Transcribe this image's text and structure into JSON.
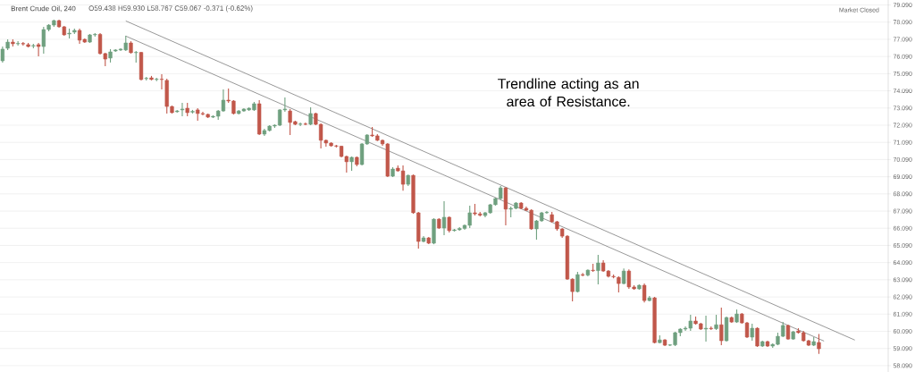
{
  "chart_data": {
    "type": "candlestick",
    "title": "Brent Crude Oil, 240",
    "annotations": [
      "O59.438  H59.930  L58.767  C59.067  -0.371 (-0.62%)",
      "Market Closed",
      "Trendline acting as an area of Resistance."
    ],
    "categories": [
      null,
      null,
      null,
      null,
      null,
      null,
      null,
      null,
      null,
      null,
      null,
      null,
      null,
      null,
      null,
      null,
      null,
      null,
      null,
      null,
      null,
      null,
      null,
      null,
      null,
      null,
      null,
      null,
      null,
      null,
      null,
      null,
      null,
      null,
      null,
      null,
      null,
      null,
      null,
      null,
      null,
      null,
      null,
      null,
      null,
      null,
      null,
      null,
      null,
      null,
      null,
      null,
      null,
      null,
      null,
      null,
      null,
      null,
      null,
      null,
      null,
      null,
      null,
      null,
      null,
      null,
      null,
      null,
      null,
      null,
      null,
      null,
      null,
      null,
      null,
      null,
      null,
      null,
      null,
      null,
      null,
      null,
      null,
      null,
      null,
      null,
      null,
      null,
      null,
      null,
      null,
      null,
      null,
      null,
      null,
      null,
      null,
      null,
      null,
      null,
      null,
      null,
      null,
      null,
      null,
      null,
      null,
      null,
      null,
      null,
      null,
      null,
      null,
      null,
      null,
      null,
      null,
      null,
      null,
      null,
      null,
      null,
      null,
      null,
      null,
      null,
      null,
      null,
      null,
      null,
      null,
      null,
      null,
      null,
      null,
      null,
      null,
      null,
      null,
      null,
      null,
      null,
      null,
      null,
      null,
      null,
      null,
      null,
      null,
      null,
      null,
      null,
      null,
      null,
      null,
      null,
      null,
      null,
      null,
      null,
      null,
      null,
      null,
      null,
      null,
      null,
      null,
      null,
      null,
      null,
      null,
      null,
      null
    ],
    "ohlc": [
      [
        75.84,
        76.67,
        75.74,
        76.52
      ],
      [
        76.57,
        77.09,
        76.47,
        76.93
      ],
      [
        76.93,
        77.09,
        76.67,
        76.83
      ],
      [
        76.83,
        76.98,
        76.73,
        76.85
      ],
      [
        76.85,
        76.93,
        76.73,
        76.82
      ],
      [
        76.78,
        76.88,
        76.62,
        76.67
      ],
      [
        76.7,
        76.83,
        76.57,
        76.73
      ],
      [
        76.78,
        76.88,
        76.1,
        76.67
      ],
      [
        76.67,
        77.82,
        76.26,
        77.66
      ],
      [
        77.66,
        77.97,
        77.56,
        77.92
      ],
      [
        77.92,
        78.23,
        77.82,
        78.18
      ],
      [
        78.18,
        78.23,
        77.77,
        77.82
      ],
      [
        77.82,
        77.87,
        77.3,
        77.35
      ],
      [
        77.4,
        77.71,
        77.14,
        77.45
      ],
      [
        77.51,
        77.71,
        77.4,
        77.61
      ],
      [
        77.61,
        77.71,
        76.83,
        77.04
      ],
      [
        77.09,
        77.14,
        76.88,
        76.93
      ],
      [
        76.93,
        77.4,
        76.88,
        77.35
      ],
      [
        77.35,
        77.45,
        77.25,
        77.38
      ],
      [
        77.38,
        77.45,
        76.2,
        76.26
      ],
      [
        76.26,
        76.31,
        75.53,
        75.94
      ],
      [
        76.0,
        76.52,
        75.74,
        76.36
      ],
      [
        76.41,
        76.52,
        76.36,
        76.47
      ],
      [
        76.47,
        76.57,
        76.41,
        76.52
      ],
      [
        76.47,
        77.3,
        76.41,
        76.88
      ],
      [
        76.88,
        76.98,
        76.26,
        76.31
      ],
      [
        76.31,
        76.41,
        75.74,
        76.33
      ],
      [
        76.33,
        76.36,
        74.7,
        74.75
      ],
      [
        74.8,
        74.9,
        74.7,
        74.82
      ],
      [
        74.85,
        74.96,
        74.7,
        74.75
      ],
      [
        74.75,
        74.85,
        74.65,
        74.77
      ],
      [
        74.77,
        75.06,
        74.17,
        74.75
      ],
      [
        74.7,
        74.8,
        72.77,
        73.18
      ],
      [
        73.18,
        73.23,
        72.77,
        72.82
      ],
      [
        72.87,
        72.98,
        72.82,
        72.92
      ],
      [
        72.98,
        73.39,
        72.61,
        73.03
      ],
      [
        73.08,
        73.39,
        72.61,
        72.82
      ],
      [
        72.85,
        72.98,
        72.77,
        72.9
      ],
      [
        72.98,
        73.08,
        72.35,
        72.77
      ],
      [
        72.77,
        72.87,
        72.66,
        72.74
      ],
      [
        72.72,
        72.77,
        72.51,
        72.56
      ],
      [
        72.56,
        72.66,
        72.51,
        72.61
      ],
      [
        72.61,
        72.98,
        72.4,
        72.92
      ],
      [
        72.92,
        74.17,
        72.87,
        73.55
      ],
      [
        73.55,
        74.23,
        73.39,
        73.5
      ],
      [
        73.5,
        73.55,
        72.72,
        72.77
      ],
      [
        72.77,
        72.98,
        72.72,
        72.92
      ],
      [
        72.92,
        73.08,
        72.87,
        73.03
      ],
      [
        72.98,
        73.13,
        72.92,
        73.08
      ],
      [
        72.98,
        73.45,
        72.92,
        73.34
      ],
      [
        73.34,
        73.55,
        71.52,
        71.57
      ],
      [
        71.57,
        71.88,
        71.47,
        71.78
      ],
      [
        71.78,
        72.09,
        71.73,
        72.04
      ],
      [
        72.04,
        72.14,
        71.93,
        72.09
      ],
      [
        72.09,
        73.03,
        72.04,
        72.98
      ],
      [
        72.98,
        73.71,
        72.87,
        73.03
      ],
      [
        72.92,
        73.03,
        71.52,
        72.25
      ],
      [
        72.3,
        72.35,
        72.09,
        72.14
      ],
      [
        72.14,
        72.25,
        72.04,
        72.16
      ],
      [
        72.16,
        72.25,
        72.09,
        72.14
      ],
      [
        72.14,
        73.13,
        72.09,
        72.77
      ],
      [
        72.77,
        72.82,
        72.09,
        72.14
      ],
      [
        72.14,
        72.19,
        70.74,
        71.21
      ],
      [
        71.21,
        71.26,
        70.84,
        71.05
      ],
      [
        71.05,
        71.1,
        70.84,
        70.89
      ],
      [
        70.89,
        70.95,
        70.79,
        70.87
      ],
      [
        70.87,
        70.89,
        70.22,
        70.27
      ],
      [
        70.27,
        70.32,
        69.33,
        69.96
      ],
      [
        69.96,
        70.27,
        69.43,
        70.22
      ],
      [
        70.22,
        70.27,
        69.7,
        69.8
      ],
      [
        69.8,
        71.05,
        69.75,
        71.0
      ],
      [
        71.0,
        71.57,
        70.95,
        71.52
      ],
      [
        71.52,
        71.98,
        71.42,
        71.47
      ],
      [
        71.47,
        71.57,
        71.16,
        71.21
      ],
      [
        71.21,
        71.26,
        70.89,
        71.0
      ],
      [
        71.0,
        71.05,
        69.07,
        69.12
      ],
      [
        69.12,
        69.64,
        69.07,
        69.54
      ],
      [
        69.59,
        69.75,
        69.38,
        69.43
      ],
      [
        69.43,
        69.75,
        68.28,
        68.65
      ],
      [
        68.65,
        69.22,
        68.55,
        69.17
      ],
      [
        69.17,
        69.22,
        66.93,
        66.99
      ],
      [
        66.99,
        67.04,
        64.91,
        65.32
      ],
      [
        65.32,
        65.63,
        65.27,
        65.53
      ],
      [
        65.53,
        65.58,
        65.16,
        65.22
      ],
      [
        65.22,
        66.67,
        65.16,
        66.62
      ],
      [
        66.62,
        66.67,
        66.05,
        66.1
      ],
      [
        66.1,
        67.67,
        65.68,
        66.73
      ],
      [
        66.73,
        66.78,
        65.84,
        65.95
      ],
      [
        65.95,
        66.05,
        65.9,
        66.0
      ],
      [
        66.0,
        66.15,
        65.95,
        66.08
      ],
      [
        66.08,
        66.31,
        66.0,
        66.26
      ],
      [
        66.26,
        67.41,
        66.1,
        66.99
      ],
      [
        66.99,
        67.51,
        66.83,
        66.93
      ],
      [
        66.93,
        67.04,
        66.78,
        66.85
      ],
      [
        66.83,
        67.04,
        66.73,
        66.99
      ],
      [
        66.99,
        67.51,
        66.93,
        67.46
      ],
      [
        67.46,
        67.87,
        67.41,
        67.82
      ],
      [
        67.82,
        68.55,
        67.77,
        68.44
      ],
      [
        68.44,
        68.49,
        66.26,
        67.2
      ],
      [
        67.2,
        67.35,
        66.73,
        67.25
      ],
      [
        67.25,
        67.61,
        67.2,
        67.56
      ],
      [
        67.56,
        67.61,
        67.2,
        67.25
      ],
      [
        67.25,
        67.35,
        67.09,
        67.14
      ],
      [
        67.14,
        67.2,
        66.0,
        66.05
      ],
      [
        66.05,
        66.57,
        65.42,
        66.52
      ],
      [
        66.52,
        67.04,
        66.47,
        66.99
      ],
      [
        66.99,
        67.09,
        66.93,
        67.02
      ],
      [
        66.88,
        67.04,
        66.42,
        66.47
      ],
      [
        66.47,
        66.52,
        65.95,
        66.05
      ],
      [
        66.05,
        66.1,
        65.53,
        65.63
      ],
      [
        65.63,
        65.68,
        63.08,
        63.13
      ],
      [
        63.13,
        63.18,
        61.83,
        62.4
      ],
      [
        62.4,
        63.55,
        62.35,
        63.39
      ],
      [
        63.39,
        63.49,
        63.29,
        63.36
      ],
      [
        63.36,
        63.7,
        63.29,
        63.65
      ],
      [
        63.65,
        64.02,
        63.55,
        63.62
      ],
      [
        63.62,
        64.54,
        62.82,
        64.07
      ],
      [
        64.07,
        64.23,
        63.55,
        63.6
      ],
      [
        63.6,
        63.65,
        63.23,
        63.29
      ],
      [
        63.29,
        63.39,
        63.18,
        63.26
      ],
      [
        63.23,
        63.29,
        62.35,
        62.87
      ],
      [
        62.87,
        63.75,
        62.82,
        63.6
      ],
      [
        63.6,
        63.7,
        62.56,
        62.67
      ],
      [
        62.67,
        62.77,
        62.51,
        62.56
      ],
      [
        62.56,
        62.82,
        62.51,
        62.77
      ],
      [
        62.77,
        62.87,
        61.77,
        61.88
      ],
      [
        61.88,
        62.14,
        61.83,
        62.04
      ],
      [
        62.04,
        62.09,
        59.38,
        59.43
      ],
      [
        59.43,
        59.85,
        59.38,
        59.59
      ],
      [
        59.59,
        59.64,
        59.23,
        59.28
      ],
      [
        59.28,
        59.33,
        59.23,
        59.3
      ],
      [
        59.3,
        60.06,
        59.23,
        60.01
      ],
      [
        60.01,
        60.27,
        59.8,
        60.22
      ],
      [
        60.22,
        60.37,
        60.11,
        60.27
      ],
      [
        60.27,
        61.05,
        60.11,
        60.69
      ],
      [
        60.69,
        60.95,
        60.48,
        60.53
      ],
      [
        60.53,
        60.58,
        60.17,
        60.22
      ],
      [
        60.22,
        61.0,
        59.49,
        60.27
      ],
      [
        60.27,
        60.37,
        60.17,
        60.24
      ],
      [
        60.24,
        61.05,
        60.17,
        60.47
      ],
      [
        60.47,
        61.47,
        59.28,
        59.54
      ],
      [
        59.54,
        60.95,
        59.49,
        60.89
      ],
      [
        60.89,
        60.95,
        60.58,
        60.63
      ],
      [
        60.63,
        61.36,
        60.58,
        61.1
      ],
      [
        61.1,
        61.16,
        60.53,
        60.58
      ],
      [
        60.58,
        60.63,
        59.7,
        59.75
      ],
      [
        59.75,
        60.53,
        59.54,
        60.27
      ],
      [
        60.27,
        60.32,
        59.18,
        59.23
      ],
      [
        59.23,
        59.54,
        59.18,
        59.49
      ],
      [
        59.49,
        59.54,
        59.18,
        59.23
      ],
      [
        59.23,
        59.38,
        59.12,
        59.33
      ],
      [
        59.33,
        60.01,
        59.28,
        59.8
      ],
      [
        59.8,
        60.63,
        59.75,
        60.43
      ],
      [
        60.43,
        60.48,
        59.59,
        59.64
      ],
      [
        59.64,
        60.11,
        59.59,
        60.06
      ],
      [
        60.11,
        60.27,
        59.96,
        60.01
      ],
      [
        60.01,
        60.11,
        59.49,
        59.54
      ],
      [
        59.54,
        59.59,
        59.23,
        59.28
      ],
      [
        59.28,
        59.75,
        59.23,
        59.49
      ],
      [
        59.44,
        59.93,
        58.77,
        59.07
      ],
      null,
      null,
      null,
      null,
      null,
      null,
      null,
      null,
      null,
      null,
      null,
      null,
      null
    ],
    "colors": [
      "#6fa07f",
      "#6fa07f",
      "#c1574a",
      "#6fa07f",
      "#c1574a",
      "#c1574a",
      "#6fa07f",
      "#c1574a",
      "#6fa07f",
      "#6fa07f",
      "#6fa07f",
      "#c1574a",
      "#c1574a",
      "#6fa07f",
      "#6fa07f",
      "#c1574a",
      "#c1574a",
      "#6fa07f",
      "#6fa07f",
      "#c1574a",
      "#c1574a",
      "#6fa07f",
      "#6fa07f",
      "#6fa07f",
      "#6fa07f",
      "#c1574a",
      "#6fa07f",
      "#c1574a",
      "#6fa07f",
      "#c1574a",
      "#6fa07f",
      "#c1574a",
      "#c1574a",
      "#c1574a",
      "#6fa07f",
      "#6fa07f",
      "#c1574a",
      "#6fa07f",
      "#c1574a",
      "#c1574a",
      "#c1574a",
      "#6fa07f",
      "#6fa07f",
      "#6fa07f",
      "#c1574a",
      "#c1574a",
      "#6fa07f",
      "#6fa07f",
      "#6fa07f",
      "#6fa07f",
      "#c1574a",
      "#6fa07f",
      "#6fa07f",
      "#6fa07f",
      "#6fa07f",
      "#6fa07f",
      "#c1574a",
      "#c1574a",
      "#6fa07f",
      "#c1574a",
      "#6fa07f",
      "#c1574a",
      "#c1574a",
      "#c1574a",
      "#c1574a",
      "#c1574a",
      "#c1574a",
      "#c1574a",
      "#6fa07f",
      "#c1574a",
      "#6fa07f",
      "#6fa07f",
      "#c1574a",
      "#c1574a",
      "#c1574a",
      "#c1574a",
      "#6fa07f",
      "#c1574a",
      "#c1574a",
      "#6fa07f",
      "#c1574a",
      "#c1574a",
      "#6fa07f",
      "#c1574a",
      "#6fa07f",
      "#c1574a",
      "#6fa07f",
      "#c1574a",
      "#6fa07f",
      "#6fa07f",
      "#6fa07f",
      "#6fa07f",
      "#c1574a",
      "#c1574a",
      "#6fa07f",
      "#6fa07f",
      "#6fa07f",
      "#6fa07f",
      "#c1574a",
      "#6fa07f",
      "#6fa07f",
      "#c1574a",
      "#c1574a",
      "#c1574a",
      "#6fa07f",
      "#6fa07f",
      "#6fa07f",
      "#c1574a",
      "#c1574a",
      "#c1574a",
      "#c1574a",
      "#c1574a",
      "#6fa07f",
      "#c1574a",
      "#6fa07f",
      "#c1574a",
      "#6fa07f",
      "#c1574a",
      "#c1574a",
      "#c1574a",
      "#c1574a",
      "#6fa07f",
      "#c1574a",
      "#c1574a",
      "#6fa07f",
      "#c1574a",
      "#6fa07f",
      "#c1574a",
      "#6fa07f",
      "#c1574a",
      "#6fa07f",
      "#6fa07f",
      "#6fa07f",
      "#6fa07f",
      "#6fa07f",
      "#c1574a",
      "#c1574a",
      "#6fa07f",
      "#c1574a",
      "#6fa07f",
      "#c1574a",
      "#6fa07f",
      "#c1574a",
      "#6fa07f",
      "#c1574a",
      "#c1574a",
      "#6fa07f",
      "#c1574a",
      "#6fa07f",
      "#c1574a",
      "#6fa07f",
      "#6fa07f",
      "#6fa07f",
      "#c1574a",
      "#6fa07f",
      "#c1574a",
      "#c1574a",
      "#c1574a",
      "#6fa07f",
      "#c1574a",
      null,
      null,
      null,
      null,
      null,
      null,
      null,
      null,
      null,
      null,
      null,
      null,
      null
    ],
    "series": [
      {
        "type": "line",
        "color": "#8c8c8c",
        "values": [
          null,
          null,
          null,
          null,
          null,
          null,
          null,
          null,
          null,
          null,
          null,
          null,
          null,
          null,
          null,
          null,
          null,
          null,
          null,
          null,
          null,
          null,
          null,
          null,
          78.16,
          null,
          null,
          null,
          null,
          null,
          null,
          null,
          null,
          null,
          null,
          null,
          null,
          null,
          null,
          null,
          null,
          null,
          null,
          null,
          null,
          null,
          null,
          null,
          null,
          null,
          null,
          null,
          null,
          null,
          null,
          null,
          null,
          null,
          null,
          null,
          null,
          null,
          null,
          null,
          null,
          null,
          null,
          null,
          null,
          null,
          null,
          null,
          null,
          null,
          null,
          null,
          null,
          null,
          null,
          null,
          null,
          null,
          null,
          null,
          null,
          null,
          null,
          null,
          null,
          null,
          null,
          null,
          null,
          null,
          null,
          null,
          null,
          null,
          null,
          null,
          null,
          null,
          null,
          null,
          null,
          null,
          null,
          null,
          null,
          null,
          null,
          null,
          null,
          null,
          null,
          null,
          null,
          null,
          null,
          null,
          null,
          null,
          null,
          null,
          null,
          null,
          null,
          null,
          null,
          null,
          null,
          null,
          null,
          null,
          null,
          null,
          null,
          null,
          null,
          null,
          null,
          null,
          null,
          null,
          null,
          null,
          null,
          null,
          null,
          null,
          null,
          null,
          null,
          null,
          null,
          null,
          null,
          null,
          null,
          null,
          null,
          null,
          null,
          null,
          null,
          null,
          59.58,
          null,
          null,
          null,
          null,
          null,
          null
        ]
      },
      {
        "type": "line",
        "color": "#8c8c8c",
        "values": [
          null,
          null,
          null,
          null,
          null,
          null,
          null,
          null,
          null,
          null,
          null,
          null,
          null,
          null,
          null,
          null,
          null,
          null,
          null,
          null,
          null,
          null,
          null,
          null,
          77.28,
          null,
          null,
          null,
          null,
          null,
          null,
          null,
          null,
          null,
          null,
          null,
          null,
          null,
          null,
          null,
          null,
          null,
          null,
          null,
          null,
          null,
          null,
          null,
          null,
          null,
          null,
          null,
          null,
          null,
          null,
          null,
          null,
          null,
          null,
          null,
          null,
          null,
          null,
          null,
          null,
          null,
          null,
          null,
          null,
          null,
          null,
          null,
          null,
          null,
          null,
          null,
          null,
          null,
          null,
          null,
          null,
          null,
          null,
          null,
          null,
          null,
          null,
          null,
          null,
          null,
          null,
          null,
          null,
          null,
          null,
          null,
          null,
          null,
          null,
          null,
          null,
          null,
          null,
          null,
          null,
          null,
          null,
          null,
          null,
          null,
          null,
          null,
          null,
          null,
          null,
          null,
          null,
          null,
          null,
          null,
          null,
          null,
          null,
          null,
          null,
          null,
          null,
          null,
          null,
          null,
          null,
          null,
          null,
          null,
          null,
          null,
          null,
          null,
          null,
          null,
          null,
          null,
          null,
          null,
          null,
          null,
          null,
          null,
          null,
          null,
          null,
          null,
          null,
          null,
          null,
          null,
          null,
          null,
          null,
          null,
          59.52,
          null,
          null,
          null,
          null,
          null,
          null,
          null,
          null,
          null,
          null,
          null,
          null
        ]
      }
    ],
    "ylim": [
      57.72,
      79.38
    ],
    "yticks": [
      {
        "value": 58.09,
        "label": "58.090"
      },
      {
        "value": 59.09,
        "label": "59.090"
      },
      {
        "value": 60.09,
        "label": "60.090"
      },
      {
        "value": 61.09,
        "label": "61.090"
      },
      {
        "value": 62.09,
        "label": "62.090"
      },
      {
        "value": 63.09,
        "label": "63.090"
      },
      {
        "value": 64.09,
        "label": "64.090"
      },
      {
        "value": 65.09,
        "label": "65.090"
      },
      {
        "value": 66.09,
        "label": "66.090"
      },
      {
        "value": 67.09,
        "label": "67.090"
      },
      {
        "value": 68.09,
        "label": "68.090"
      },
      {
        "value": 69.09,
        "label": "69.090"
      },
      {
        "value": 70.09,
        "label": "70.090"
      },
      {
        "value": 71.09,
        "label": "71.090"
      },
      {
        "value": 72.09,
        "label": "72.090"
      },
      {
        "value": 73.09,
        "label": "73.090"
      },
      {
        "value": 74.09,
        "label": "74.090"
      },
      {
        "value": 75.09,
        "label": "75.090"
      },
      {
        "value": 76.09,
        "label": "76.090"
      },
      {
        "value": 77.09,
        "label": "77.090"
      },
      {
        "value": 78.09,
        "label": "78.090"
      },
      {
        "value": 79.09,
        "label": "79.090"
      }
    ],
    "grid": "y"
  }
}
